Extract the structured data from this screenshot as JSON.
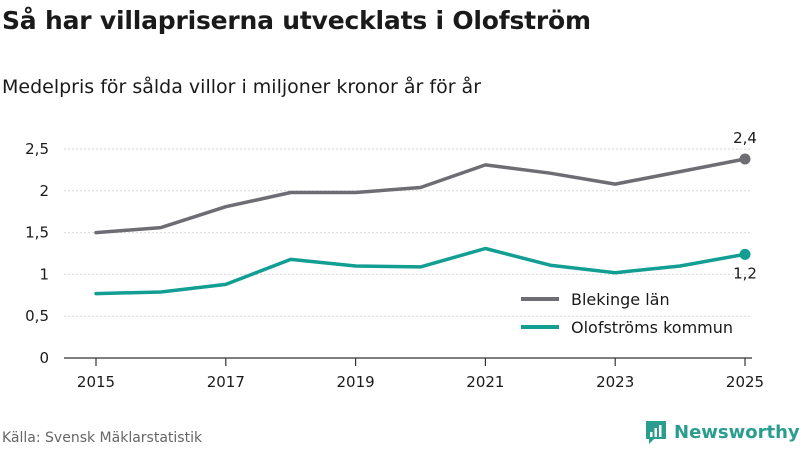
{
  "title": "Så har villapriserna utvecklats i Olofström",
  "subtitle": "Medelpris för sålda villor i miljoner kronor år för år",
  "source": "Källa: Svensk Mäklarstatistik",
  "brand": "Newsworthy",
  "chart_data": {
    "type": "line",
    "x": [
      2015,
      2016,
      2017,
      2018,
      2019,
      2020,
      2021,
      2022,
      2023,
      2024,
      2025
    ],
    "series": [
      {
        "name": "Blekinge län",
        "color": "#6e6d73",
        "values": [
          1.5,
          1.56,
          1.81,
          1.98,
          1.98,
          2.04,
          2.31,
          2.21,
          2.08,
          2.23,
          2.38
        ]
      },
      {
        "name": "Olofströms kommun",
        "color": "#139e93",
        "values": [
          0.77,
          0.79,
          0.88,
          1.18,
          1.1,
          1.09,
          1.31,
          1.11,
          1.02,
          1.1,
          1.24
        ]
      }
    ],
    "end_labels": [
      "2,4",
      "1,2"
    ],
    "x_ticks": [
      "2015",
      "2017",
      "2019",
      "2021",
      "2023",
      "2025"
    ],
    "y_ticks": [
      "0",
      "0,5",
      "1",
      "1,5",
      "2",
      "2,5"
    ],
    "y_tick_values": [
      0,
      0.5,
      1,
      1.5,
      2,
      2.5
    ],
    "x_tick_values": [
      2015,
      2017,
      2019,
      2021,
      2023,
      2025
    ],
    "ylim": [
      0,
      2.5
    ],
    "xlim": [
      2015,
      2025
    ],
    "legend_position": "bottom-right"
  }
}
